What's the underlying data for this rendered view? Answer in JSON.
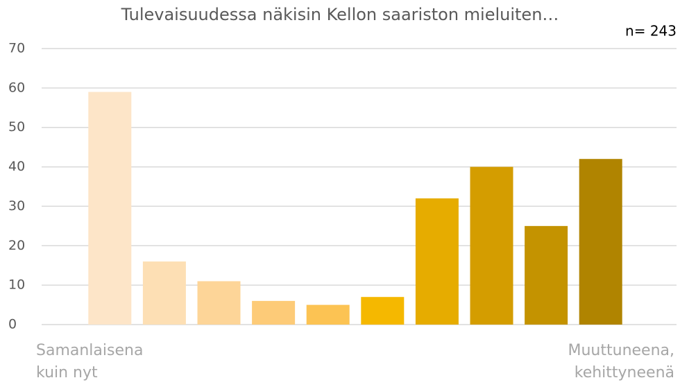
{
  "chart_data": {
    "type": "bar",
    "title": "Tulevaisuudessa näkisin Kellon saariston mieluiten…",
    "annotation": "n= 243",
    "categories": [
      "Samanlaisena kuin nyt",
      null,
      null,
      null,
      null,
      null,
      null,
      null,
      null,
      "Muuttuneena, kehittyneenä"
    ],
    "values": [
      59,
      16,
      11,
      6,
      5,
      7,
      32,
      40,
      25,
      42
    ],
    "colors": [
      "#fde5c8",
      "#fddfb4",
      "#fdd598",
      "#fdcb78",
      "#fcc353",
      "#f5b800",
      "#e6ac00",
      "#d49d00",
      "#c49300",
      "#b08400"
    ],
    "ylim": [
      0,
      70
    ],
    "yticks": [
      0,
      10,
      20,
      30,
      40,
      50,
      60,
      70
    ],
    "grid": true
  }
}
